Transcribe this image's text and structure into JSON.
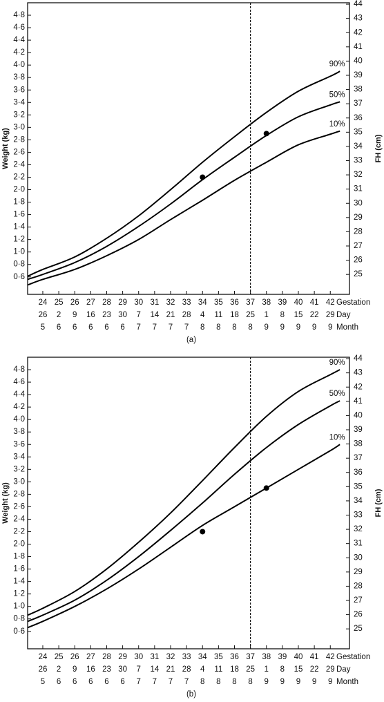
{
  "chart_data": [
    {
      "type": "line",
      "label": "(a)",
      "ylabel": "Weight (kg)",
      "y2label": "FH (cm)",
      "xlim": [
        23.05,
        43.2
      ],
      "ylim": [
        0.32,
        5.0
      ],
      "y2lim": [
        23.6,
        44.1
      ],
      "xticks": [
        24,
        25,
        26,
        27,
        28,
        29,
        30,
        31,
        32,
        33,
        34,
        35,
        36,
        37,
        38,
        39,
        40,
        41,
        42
      ],
      "day": [
        "26",
        "2",
        "9",
        "16",
        "23",
        "30",
        "7",
        "14",
        "21",
        "28",
        "4",
        "11",
        "18",
        "25",
        "1",
        "8",
        "15",
        "22",
        "29"
      ],
      "month": [
        "5",
        "6",
        "6",
        "6",
        "6",
        "6",
        "7",
        "7",
        "7",
        "7",
        "8",
        "8",
        "8",
        "8",
        "9",
        "9",
        "9",
        "9",
        "9"
      ],
      "row_labels": [
        "Gestation",
        "Day",
        "Month"
      ],
      "yticks": [
        {
          "value": 0.6,
          "label": "0·6"
        },
        {
          "value": 0.8,
          "label": "0·8"
        },
        {
          "value": 1.0,
          "label": "1·0"
        },
        {
          "value": 1.2,
          "label": "1·2"
        },
        {
          "value": 1.4,
          "label": "1·4"
        },
        {
          "value": 1.6,
          "label": "1·6"
        },
        {
          "value": 1.8,
          "label": "1·8"
        },
        {
          "value": 2.0,
          "label": "2·0"
        },
        {
          "value": 2.2,
          "label": "2·2"
        },
        {
          "value": 2.4,
          "label": "2·4"
        },
        {
          "value": 2.6,
          "label": "2·6"
        },
        {
          "value": 2.8,
          "label": "2·8"
        },
        {
          "value": 3.0,
          "label": "3·0"
        },
        {
          "value": 3.2,
          "label": "3·2"
        },
        {
          "value": 3.4,
          "label": "3·4"
        },
        {
          "value": 3.6,
          "label": "3·6"
        },
        {
          "value": 3.8,
          "label": "3·8"
        },
        {
          "value": 4.0,
          "label": "4·0"
        },
        {
          "value": 4.2,
          "label": "4·2"
        },
        {
          "value": 4.4,
          "label": "4·4"
        },
        {
          "value": 4.6,
          "label": "4·6"
        },
        {
          "value": 4.8,
          "label": "4·8"
        }
      ],
      "y2ticks": [
        25,
        26,
        27,
        28,
        29,
        30,
        31,
        32,
        33,
        34,
        35,
        36,
        37,
        38,
        39,
        40,
        41,
        42,
        43,
        44
      ],
      "reference_x": 37,
      "series": [
        {
          "name": "90%",
          "color": "#000000",
          "x": [
            23.05,
            24,
            26,
            28,
            30,
            32,
            34,
            36,
            38,
            40,
            42,
            42.6
          ],
          "values": [
            0.61,
            0.72,
            0.92,
            1.22,
            1.58,
            2.0,
            2.44,
            2.85,
            3.24,
            3.58,
            3.82,
            3.9
          ]
        },
        {
          "name": "50%",
          "color": "#000000",
          "x": [
            23.05,
            24,
            26,
            28,
            30,
            32,
            34,
            36,
            38,
            40,
            42,
            42.6
          ],
          "values": [
            0.56,
            0.64,
            0.83,
            1.09,
            1.41,
            1.77,
            2.16,
            2.52,
            2.87,
            3.17,
            3.36,
            3.41
          ]
        },
        {
          "name": "10%",
          "color": "#000000",
          "x": [
            23.05,
            24,
            26,
            28,
            30,
            32,
            34,
            36,
            38,
            40,
            42,
            42.6
          ],
          "values": [
            0.47,
            0.56,
            0.72,
            0.94,
            1.2,
            1.52,
            1.83,
            2.15,
            2.44,
            2.72,
            2.89,
            2.94
          ]
        }
      ],
      "points": {
        "color": "#000000",
        "x": [
          34,
          38
        ],
        "values": [
          2.2,
          2.9
        ]
      }
    },
    {
      "type": "line",
      "label": "(b)",
      "ylabel": "Weight (kg)",
      "y2label": "FH (cm)",
      "xlim": [
        23.05,
        43.2
      ],
      "ylim": [
        0.32,
        5.0
      ],
      "y2lim": [
        23.6,
        44.1
      ],
      "xticks": [
        24,
        25,
        26,
        27,
        28,
        29,
        30,
        31,
        32,
        33,
        34,
        35,
        36,
        37,
        38,
        39,
        40,
        41,
        42
      ],
      "day": [
        "26",
        "2",
        "9",
        "16",
        "23",
        "30",
        "7",
        "14",
        "21",
        "28",
        "4",
        "11",
        "18",
        "25",
        "1",
        "8",
        "15",
        "22",
        "29"
      ],
      "month": [
        "5",
        "6",
        "6",
        "6",
        "6",
        "6",
        "7",
        "7",
        "7",
        "7",
        "8",
        "8",
        "8",
        "8",
        "9",
        "9",
        "9",
        "9",
        "9"
      ],
      "row_labels": [
        "Gestation",
        "Day",
        "Month"
      ],
      "yticks": [
        {
          "value": 0.6,
          "label": "0·6"
        },
        {
          "value": 0.8,
          "label": "0·8"
        },
        {
          "value": 1.0,
          "label": "1·0"
        },
        {
          "value": 1.2,
          "label": "1·2"
        },
        {
          "value": 1.4,
          "label": "1·4"
        },
        {
          "value": 1.6,
          "label": "1·6"
        },
        {
          "value": 1.8,
          "label": "1·8"
        },
        {
          "value": 2.0,
          "label": "2·0"
        },
        {
          "value": 2.2,
          "label": "2·2"
        },
        {
          "value": 2.4,
          "label": "2·4"
        },
        {
          "value": 2.6,
          "label": "2·6"
        },
        {
          "value": 2.8,
          "label": "2·8"
        },
        {
          "value": 3.0,
          "label": "3·0"
        },
        {
          "value": 3.2,
          "label": "3·2"
        },
        {
          "value": 3.4,
          "label": "3·4"
        },
        {
          "value": 3.6,
          "label": "3·6"
        },
        {
          "value": 3.8,
          "label": "3·8"
        },
        {
          "value": 4.0,
          "label": "4·0"
        },
        {
          "value": 4.2,
          "label": "4·2"
        },
        {
          "value": 4.4,
          "label": "4·4"
        },
        {
          "value": 4.6,
          "label": "4·6"
        },
        {
          "value": 4.8,
          "label": "4·8"
        }
      ],
      "y2ticks": [
        25,
        26,
        27,
        28,
        29,
        30,
        31,
        32,
        33,
        34,
        35,
        36,
        37,
        38,
        39,
        40,
        41,
        42,
        43,
        44
      ],
      "reference_x": 37,
      "series": [
        {
          "name": "90%",
          "color": "#000000",
          "x": [
            23.05,
            24,
            26,
            28,
            30,
            32,
            34,
            36,
            38,
            40,
            42,
            42.6
          ],
          "values": [
            0.86,
            0.97,
            1.24,
            1.6,
            2.03,
            2.5,
            3.02,
            3.55,
            4.05,
            4.45,
            4.72,
            4.8
          ]
        },
        {
          "name": "50%",
          "color": "#000000",
          "x": [
            23.05,
            24,
            26,
            28,
            30,
            32,
            34,
            36,
            38,
            40,
            42,
            42.6
          ],
          "values": [
            0.76,
            0.86,
            1.1,
            1.42,
            1.8,
            2.22,
            2.66,
            3.12,
            3.55,
            3.92,
            4.22,
            4.3
          ]
        },
        {
          "name": "10%",
          "color": "#000000",
          "x": [
            23.05,
            24,
            26,
            28,
            30,
            32,
            34,
            36,
            38,
            40,
            42,
            42.6
          ],
          "values": [
            0.66,
            0.76,
            1.0,
            1.28,
            1.6,
            1.95,
            2.3,
            2.6,
            2.9,
            3.2,
            3.5,
            3.6
          ]
        }
      ],
      "points": {
        "color": "#000000",
        "x": [
          34,
          38
        ],
        "values": [
          2.2,
          2.9
        ]
      }
    }
  ]
}
